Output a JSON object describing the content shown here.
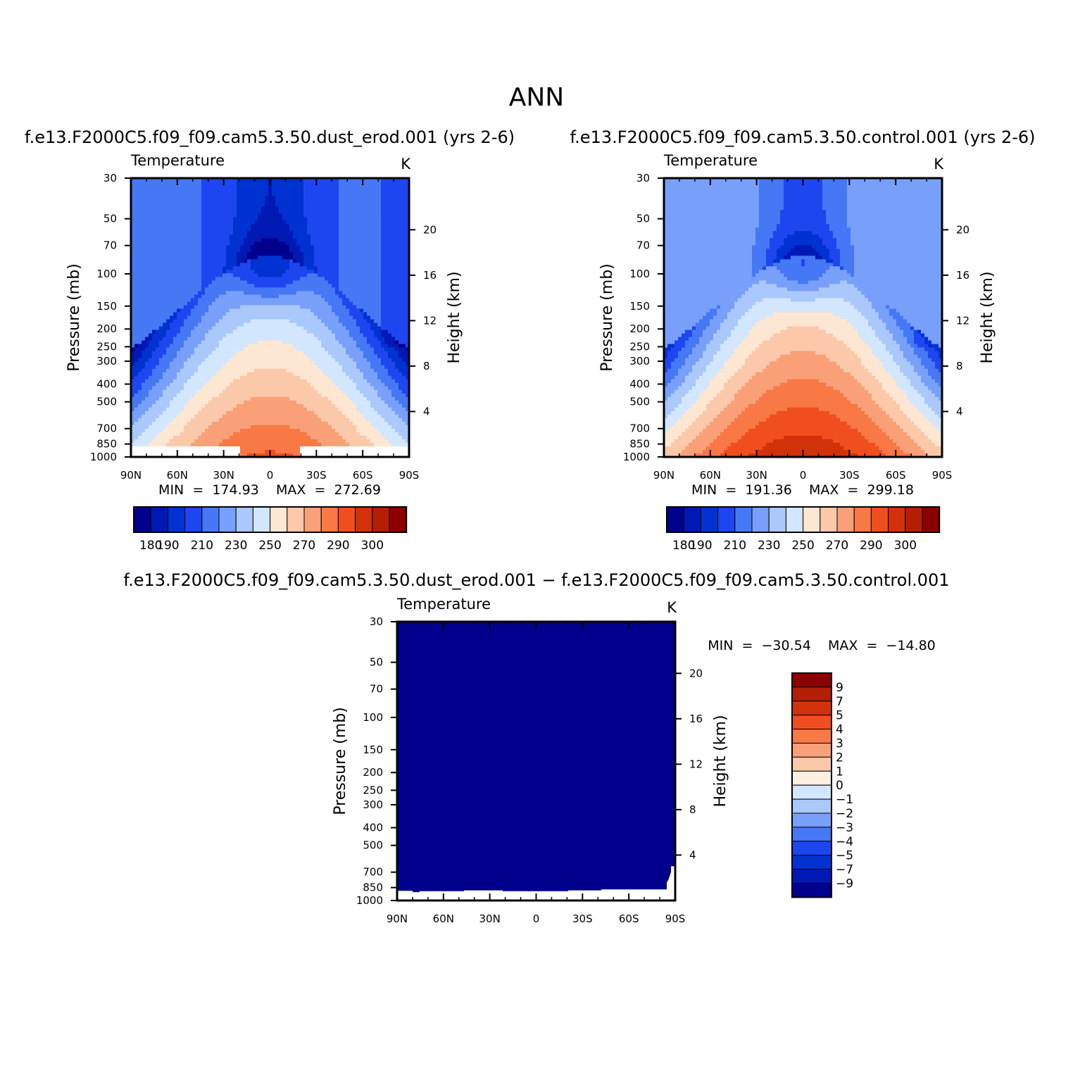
{
  "figure_title": "ANN",
  "colors": {
    "temperature_scale": [
      "#00008c",
      "#0019b4",
      "#0032d2",
      "#1e46f0",
      "#4678f5",
      "#78a0fa",
      "#aac8fc",
      "#d2e6fd",
      "#fde6d2",
      "#fcc8aa",
      "#f9a078",
      "#f87846",
      "#f04e1e",
      "#d2320a",
      "#b41e05",
      "#8c0000"
    ],
    "difference_scale": [
      "#00008c",
      "#0019b4",
      "#0032d2",
      "#1e46f0",
      "#4678f5",
      "#78a0fa",
      "#aac8fc",
      "#d2e6fd",
      "#fdf0e0",
      "#fcc8aa",
      "#f9a078",
      "#f87846",
      "#f04e1e",
      "#d2320a",
      "#b41e05",
      "#8c0000"
    ]
  },
  "chart_data": [
    {
      "type": "heatmap",
      "title": "f.e13.F2000C5.f09_f09.cam5.3.50.dust_erod.001  (yrs 2-6)",
      "left_label": "Temperature",
      "right_label": "K",
      "ylabel": "Pressure  (mb)",
      "y2label": "Height  (km)",
      "x_ticks": [
        "90N",
        "60N",
        "30N",
        "0",
        "30S",
        "60S",
        "90S"
      ],
      "y_ticks": [
        "30",
        "50",
        "70",
        "100",
        "150",
        "200",
        "250",
        "300",
        "400",
        "500",
        "700",
        "850",
        "1000"
      ],
      "y2_ticks": [
        "20",
        "16",
        "12",
        "8",
        "4"
      ],
      "stats": "MIN  =  174.93    MAX  =  272.69",
      "min": 174.93,
      "max": 272.69,
      "offset": 0,
      "colorbar_labels": [
        "180",
        "190",
        "210",
        "230",
        "250",
        "270",
        "290",
        "300"
      ]
    },
    {
      "type": "heatmap",
      "title": "f.e13.F2000C5.f09_f09.cam5.3.50.control.001  (yrs 2-6)",
      "left_label": "Temperature",
      "right_label": "K",
      "ylabel": "Pressure  (mb)",
      "y2label": "Height  (km)",
      "x_ticks": [
        "90N",
        "60N",
        "30N",
        "0",
        "30S",
        "60S",
        "90S"
      ],
      "y_ticks": [
        "30",
        "50",
        "70",
        "100",
        "150",
        "200",
        "250",
        "300",
        "400",
        "500",
        "700",
        "850",
        "1000"
      ],
      "y2_ticks": [
        "20",
        "16",
        "12",
        "8",
        "4"
      ],
      "stats": "MIN  =  191.36    MAX  =  299.18",
      "min": 191.36,
      "max": 299.18,
      "offset": 16,
      "colorbar_labels": [
        "180",
        "190",
        "210",
        "230",
        "250",
        "270",
        "290",
        "300"
      ]
    },
    {
      "type": "heatmap",
      "title": "f.e13.F2000C5.f09_f09.cam5.3.50.dust_erod.001  −  f.e13.F2000C5.f09_f09.cam5.3.50.control.001",
      "left_label": "Temperature",
      "right_label": "K",
      "ylabel": "Pressure  (mb)",
      "y2label": "Height  (km)",
      "x_ticks": [
        "90N",
        "60N",
        "30N",
        "0",
        "30S",
        "60S",
        "90S"
      ],
      "y_ticks": [
        "30",
        "50",
        "70",
        "100",
        "150",
        "200",
        "250",
        "300",
        "400",
        "500",
        "700",
        "850",
        "1000"
      ],
      "y2_ticks": [
        "20",
        "16",
        "12",
        "8",
        "4"
      ],
      "stats": "MIN  =  −30.54    MAX  =  −14.80",
      "min": -30.54,
      "max": -14.8,
      "colorbar_labels": [
        "9",
        "7",
        "5",
        "4",
        "3",
        "2",
        "1",
        "0",
        "−1",
        "−2",
        "−3",
        "−4",
        "−5",
        "−7",
        "−9"
      ]
    }
  ]
}
